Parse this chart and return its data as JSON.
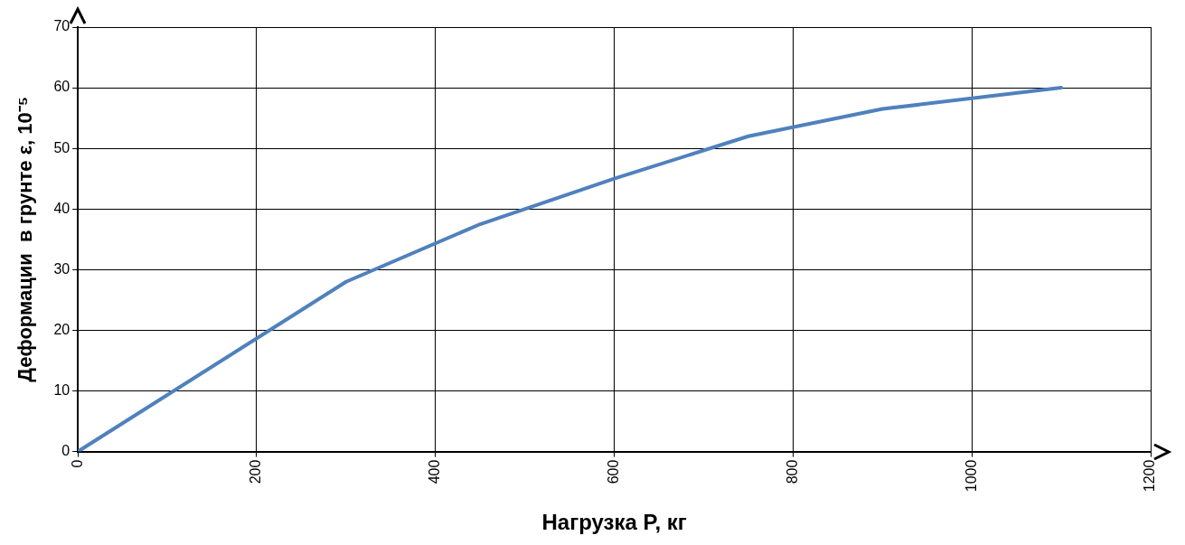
{
  "chart_data": {
    "type": "line",
    "xlabel": "Нагрузка P, кг",
    "ylabel": "Деформации  в грунте ε, 10⁻⁵",
    "x": [
      0,
      300,
      450,
      600,
      750,
      900,
      1100
    ],
    "series": [
      {
        "color": "#4f81bd",
        "values": [
          0,
          28,
          37.5,
          45,
          52,
          56.5,
          60
        ]
      }
    ],
    "xlim": [
      0,
      1200
    ],
    "xticks": [
      0,
      200,
      400,
      600,
      800,
      1000,
      1200
    ],
    "ylim": [
      0,
      70
    ],
    "yticks": [
      0,
      10,
      20,
      30,
      40,
      50,
      60,
      70
    ],
    "grid": true,
    "legend": false,
    "marker": "none",
    "line_style": "solid"
  }
}
